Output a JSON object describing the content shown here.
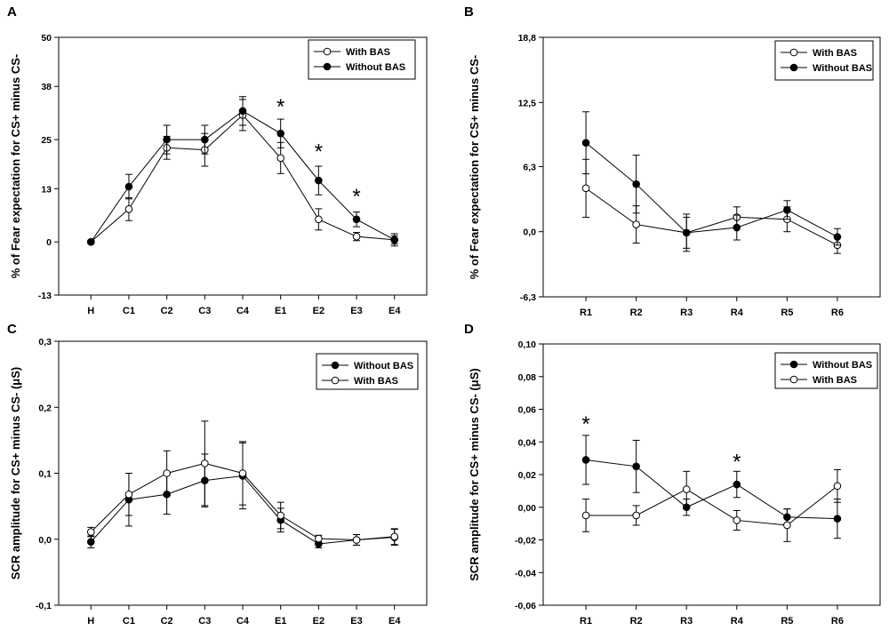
{
  "figure": {
    "colors": {
      "axis": "#000000",
      "filled_marker": "#000000",
      "open_marker": "#ffffff"
    }
  },
  "chart_data": [
    {
      "panel": "A",
      "type": "line",
      "ylabel": "% of Fear expectation for CS+ minus CS-",
      "xlabel": "",
      "categories": [
        "H",
        "C1",
        "C2",
        "C3",
        "C4",
        "E1",
        "E2",
        "E3",
        "E4"
      ],
      "ylim": [
        -13,
        50
      ],
      "yticks": [
        -13,
        0,
        13,
        25,
        38,
        50
      ],
      "ytick_labels": [
        "-13",
        "0",
        "13",
        "25",
        "38",
        "50"
      ],
      "legend_position": "top-right",
      "series": [
        {
          "name": "With BAS",
          "marker": "open",
          "values": [
            0,
            8,
            23,
            22.5,
            31,
            20.5,
            5.5,
            1.3,
            0.5
          ],
          "errors": [
            0.3,
            2.8,
            2.8,
            4.0,
            3.8,
            3.8,
            2.6,
            1.0,
            1.0
          ]
        },
        {
          "name": "Without BAS",
          "marker": "filled",
          "values": [
            0,
            13.5,
            25,
            25,
            32,
            26.5,
            15,
            5.5,
            0.5
          ],
          "errors": [
            0.3,
            3.0,
            3.5,
            3.5,
            3.5,
            3.5,
            3.5,
            1.8,
            1.5
          ]
        }
      ],
      "annotations": [
        {
          "text": "*",
          "category": "E1",
          "y": 33.5
        },
        {
          "text": "*",
          "category": "E2",
          "y": 22.5
        },
        {
          "text": "*",
          "category": "E3",
          "y": 11.5
        }
      ]
    },
    {
      "panel": "B",
      "type": "line",
      "ylabel": "% of Fear expectation for CS+ minus CS-",
      "xlabel": "",
      "categories": [
        "R1",
        "R2",
        "R3",
        "R4",
        "R5",
        "R6"
      ],
      "ylim": [
        -6.3,
        18.8
      ],
      "yticks": [
        -6.3,
        0,
        6.3,
        12.5,
        18.8
      ],
      "ytick_labels": [
        "-6,3",
        "0,0",
        "6,3",
        "12,5",
        "18,8"
      ],
      "legend_position": "top-right",
      "series": [
        {
          "name": "With BAS",
          "marker": "open",
          "values": [
            4.2,
            0.7,
            -0.1,
            1.4,
            1.2,
            -1.3
          ],
          "errors": [
            2.8,
            1.8,
            1.5,
            1.0,
            1.2,
            0.8
          ]
        },
        {
          "name": "Without BAS",
          "marker": "filled",
          "values": [
            8.6,
            4.6,
            -0.1,
            0.4,
            2.1,
            -0.5
          ],
          "errors": [
            3.0,
            2.8,
            1.8,
            1.2,
            0.9,
            0.8
          ]
        }
      ],
      "annotations": []
    },
    {
      "panel": "C",
      "type": "line",
      "ylabel": "SCR amplitude for CS+ minus CS- (μS)",
      "xlabel": "",
      "categories": [
        "H",
        "C1",
        "C2",
        "C3",
        "C4",
        "E1",
        "E2",
        "E3",
        "E4"
      ],
      "ylim": [
        -0.1,
        0.3
      ],
      "yticks": [
        -0.1,
        0,
        0.1,
        0.2,
        0.3
      ],
      "ytick_labels": [
        "-0,1",
        "0,0",
        "0,1",
        "0,2",
        "0,3"
      ],
      "legend_position": "top-right",
      "series": [
        {
          "name": "Without BAS",
          "marker": "filled",
          "values": [
            -0.004,
            0.06,
            0.068,
            0.089,
            0.096,
            0.029,
            -0.007,
            -0.001,
            0.003
          ],
          "errors": [
            0.009,
            0.04,
            0.03,
            0.04,
            0.05,
            0.018,
            0.006,
            0.008,
            0.012
          ]
        },
        {
          "name": "With BAS",
          "marker": "open",
          "values": [
            0.011,
            0.068,
            0.1,
            0.115,
            0.1,
            0.036,
            0.001,
            -0.001,
            0.004
          ],
          "errors": [
            0.007,
            0.032,
            0.034,
            0.064,
            0.048,
            0.02,
            0.005,
            0.008,
            0.012
          ]
        }
      ],
      "annotations": []
    },
    {
      "panel": "D",
      "type": "line",
      "ylabel": "SCR amplitude for CS+ minus CS- (μS)",
      "xlabel": "",
      "categories": [
        "R1",
        "R2",
        "R3",
        "R4",
        "R5",
        "R6"
      ],
      "ylim": [
        -0.06,
        0.1
      ],
      "yticks": [
        -0.06,
        -0.04,
        -0.02,
        0.0,
        0.02,
        0.04,
        0.06,
        0.08,
        0.1
      ],
      "ytick_labels": [
        "-0,06",
        "-0,04",
        "-0,02",
        "0,00",
        "0,02",
        "0,04",
        "0,06",
        "0,08",
        "0,10"
      ],
      "legend_position": "top-right",
      "series": [
        {
          "name": "Without BAS",
          "marker": "filled",
          "values": [
            0.029,
            0.025,
            0.0,
            0.014,
            -0.006,
            -0.007
          ],
          "errors": [
            0.015,
            0.016,
            0.005,
            0.008,
            0.005,
            0.012
          ]
        },
        {
          "name": "With BAS",
          "marker": "open",
          "values": [
            -0.005,
            -0.005,
            0.011,
            -0.008,
            -0.011,
            0.013
          ],
          "errors": [
            0.01,
            0.006,
            0.011,
            0.006,
            0.01,
            0.01
          ]
        }
      ],
      "annotations": [
        {
          "text": "*",
          "category": "R1",
          "y": 0.052
        },
        {
          "text": "*",
          "category": "R4",
          "y": 0.029
        }
      ]
    }
  ]
}
